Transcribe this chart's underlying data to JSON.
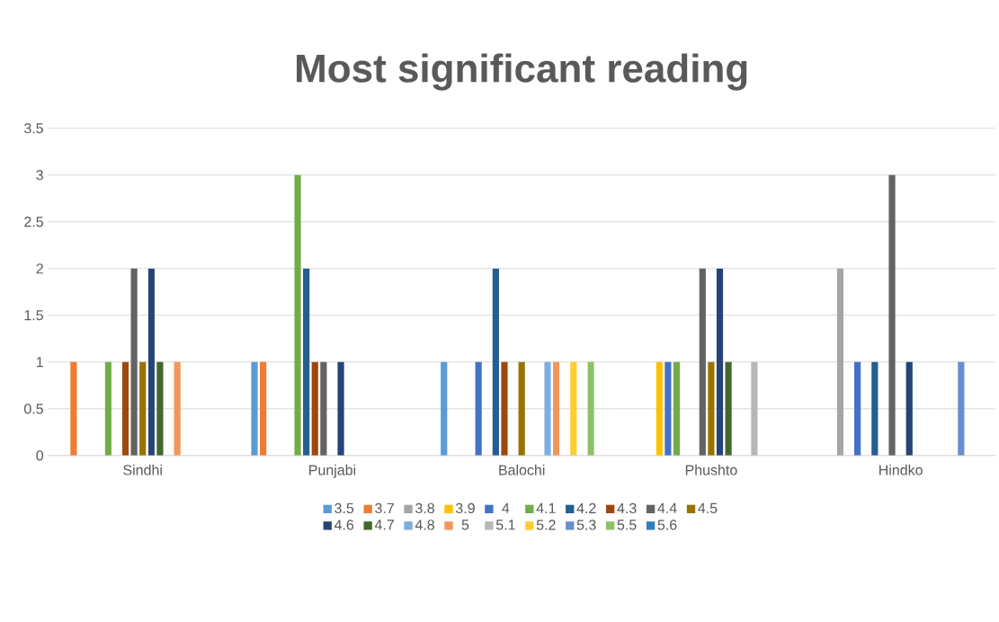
{
  "chart_data": {
    "type": "bar",
    "title": "**Most significant reading**",
    "categories": [
      "Sindhi",
      "Punjabi",
      "Balochi",
      "Phushto",
      "Hindko"
    ],
    "series": [
      {
        "name": "3.5",
        "color": "#5b9bd5",
        "values": [
          null,
          1,
          1,
          null,
          null
        ]
      },
      {
        "name": "3.7",
        "color": "#ed7d31",
        "values": [
          1,
          1,
          null,
          null,
          null
        ]
      },
      {
        "name": "3.8",
        "color": "#a5a5a5",
        "values": [
          null,
          null,
          null,
          null,
          2
        ]
      },
      {
        "name": "3.9",
        "color": "#ffc000",
        "values": [
          null,
          null,
          null,
          1,
          null
        ]
      },
      {
        "name": "4",
        "color": "#4472c4",
        "values": [
          null,
          null,
          1,
          1,
          1
        ]
      },
      {
        "name": "4.1",
        "color": "#70ad47",
        "values": [
          1,
          3,
          null,
          1,
          null
        ]
      },
      {
        "name": "4.2",
        "color": "#255e91",
        "values": [
          null,
          2,
          2,
          null,
          1
        ]
      },
      {
        "name": "4.3",
        "color": "#9e480e",
        "values": [
          1,
          1,
          1,
          null,
          null
        ]
      },
      {
        "name": "4.4",
        "color": "#636363",
        "values": [
          2,
          1,
          null,
          2,
          3
        ]
      },
      {
        "name": "4.5",
        "color": "#997300",
        "values": [
          1,
          null,
          1,
          1,
          null
        ]
      },
      {
        "name": "4.6",
        "color": "#264478",
        "values": [
          2,
          1,
          null,
          2,
          1
        ]
      },
      {
        "name": "4.7",
        "color": "#43682b",
        "values": [
          1,
          null,
          null,
          1,
          null
        ]
      },
      {
        "name": "4.8",
        "color": "#7cafdd",
        "values": [
          null,
          null,
          1,
          null,
          null
        ]
      },
      {
        "name": "5",
        "color": "#f1975a",
        "values": [
          1,
          null,
          1,
          null,
          null
        ]
      },
      {
        "name": "5.1",
        "color": "#b7b7b7",
        "values": [
          null,
          null,
          null,
          1,
          null
        ]
      },
      {
        "name": "5.2",
        "color": "#ffcd33",
        "values": [
          null,
          null,
          1,
          null,
          null
        ]
      },
      {
        "name": "5.3",
        "color": "#698ed0",
        "values": [
          null,
          null,
          null,
          null,
          1
        ]
      },
      {
        "name": "5.5",
        "color": "#8cc168",
        "values": [
          null,
          null,
          1,
          null,
          null
        ]
      },
      {
        "name": "5.6",
        "color": "#327dc2",
        "values": [
          null,
          null,
          null,
          null,
          null
        ]
      }
    ],
    "ylim": [
      0,
      3.5
    ],
    "yticks": [
      0,
      0.5,
      1,
      1.5,
      2,
      2.5,
      3,
      3.5
    ],
    "grid": "y",
    "legend": "bottom"
  }
}
